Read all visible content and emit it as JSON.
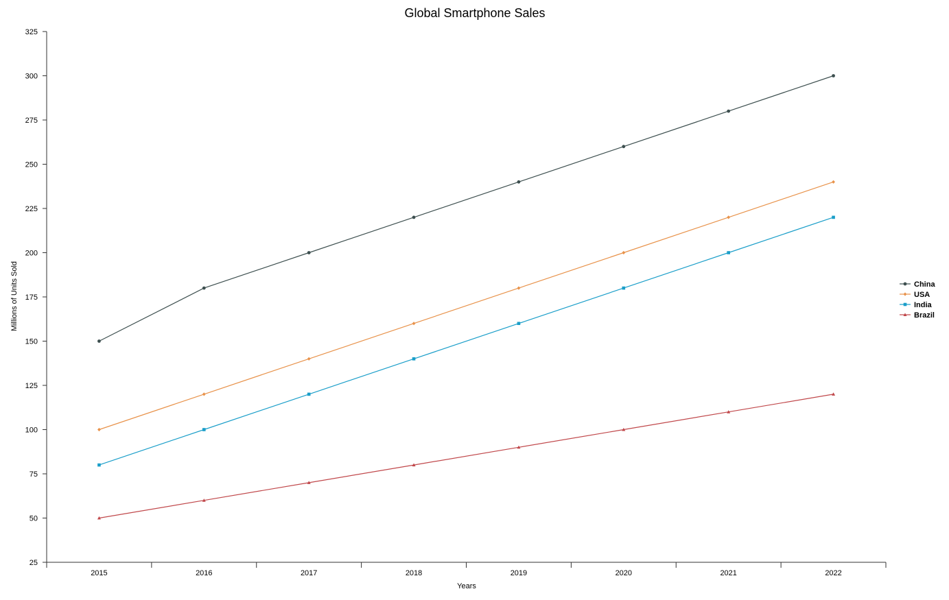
{
  "chart_data": {
    "type": "line",
    "title": "Global Smartphone Sales",
    "xlabel": "Years",
    "ylabel": "Millions of Units Sold",
    "categories": [
      "2015",
      "2016",
      "2017",
      "2018",
      "2019",
      "2020",
      "2021",
      "2022"
    ],
    "ylim": [
      25,
      325
    ],
    "yticks": [
      25,
      50,
      75,
      100,
      125,
      150,
      175,
      200,
      225,
      250,
      275,
      300,
      325
    ],
    "grid": false,
    "legend_position": "right",
    "series": [
      {
        "name": "China",
        "color": "#3d4f4f",
        "marker": "circle",
        "values": [
          150,
          180,
          200,
          220,
          240,
          260,
          280,
          300
        ]
      },
      {
        "name": "USA",
        "color": "#e8924a",
        "marker": "diamond",
        "values": [
          100,
          120,
          140,
          160,
          180,
          200,
          220,
          240
        ]
      },
      {
        "name": "India",
        "color": "#1a9ec9",
        "marker": "square",
        "values": [
          80,
          100,
          120,
          140,
          160,
          180,
          200,
          220
        ]
      },
      {
        "name": "Brazil",
        "color": "#c0474a",
        "marker": "triangle",
        "values": [
          50,
          60,
          70,
          80,
          90,
          100,
          110,
          120
        ]
      }
    ]
  }
}
